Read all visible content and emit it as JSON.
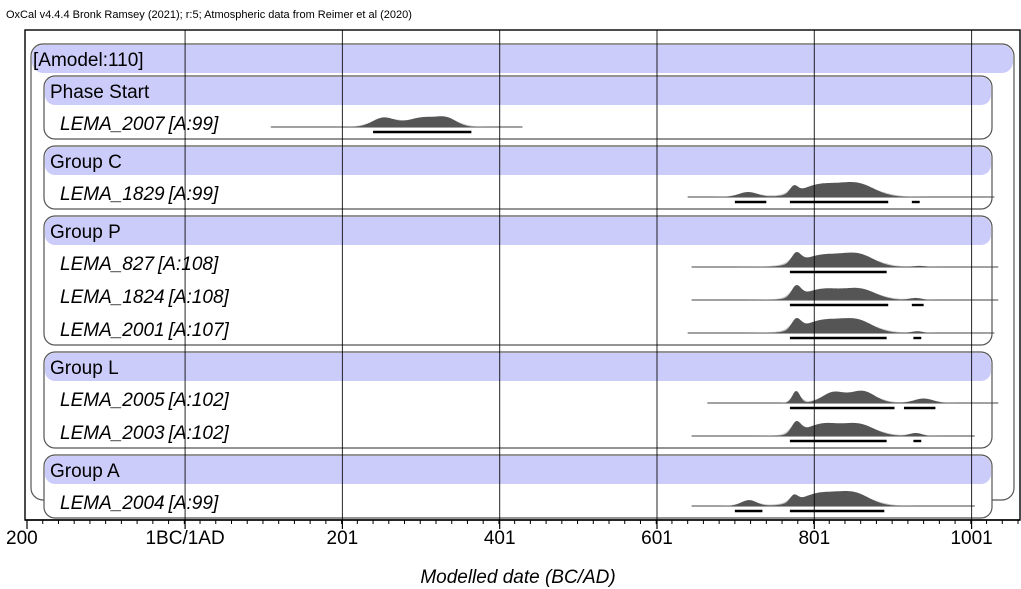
{
  "header": {
    "credit": "OxCal v4.4.4 Bronk Ramsey (2021); r:5; Atmospheric data from Reimer et al (2020)"
  },
  "model": {
    "label": "[Amodel:110]"
  },
  "colors": {
    "band": "#ccccfa",
    "density": "#555555",
    "prior": "#999999",
    "frame": "#555555",
    "grid": "#000000"
  },
  "chart_data": {
    "type": "density",
    "xlabel": "Modelled date (BC/AD)",
    "xlim": [
      -200,
      1060
    ],
    "xticks": [
      {
        "value": -200,
        "label": "200"
      },
      {
        "value": 1,
        "label": "1BC/1AD"
      },
      {
        "value": 201,
        "label": "201"
      },
      {
        "value": 401,
        "label": "401"
      },
      {
        "value": 601,
        "label": "601"
      },
      {
        "value": 801,
        "label": "801"
      },
      {
        "value": 1001,
        "label": "1001"
      }
    ],
    "gridlines": [
      1,
      201,
      401,
      601,
      801,
      1001
    ],
    "groups": [
      {
        "name": "Phase Start",
        "samples": [
          {
            "name": "LEMA_2007",
            "agreement": "[A:99]",
            "line": [
              110,
              430
            ],
            "peaks": [
              {
                "center": 253,
                "width": 14,
                "height": 0.6
              },
              {
                "center": 305,
                "width": 22,
                "height": 0.65
              },
              {
                "center": 335,
                "width": 12,
                "height": 0.4
              }
            ],
            "ranges": [
              [
                240,
                365
              ]
            ]
          }
        ]
      },
      {
        "name": "Group C",
        "samples": [
          {
            "name": "LEMA_1829",
            "agreement": "[A:99]",
            "line": [
              640,
              1030
            ],
            "peaks": [
              {
                "center": 717,
                "width": 12,
                "height": 0.35
              },
              {
                "center": 775,
                "width": 5,
                "height": 0.5
              },
              {
                "center": 808,
                "width": 24,
                "height": 0.85
              },
              {
                "center": 856,
                "width": 22,
                "height": 0.9
              }
            ],
            "ranges": [
              [
                700,
                740
              ],
              [
                770,
                895
              ],
              [
                925,
                935
              ]
            ]
          }
        ]
      },
      {
        "name": "Group P",
        "samples": [
          {
            "name": "LEMA_827",
            "agreement": "[A:108]",
            "line": [
              645,
              1035
            ],
            "peaks": [
              {
                "center": 778,
                "width": 6,
                "height": 0.7
              },
              {
                "center": 812,
                "width": 26,
                "height": 0.85
              },
              {
                "center": 858,
                "width": 20,
                "height": 0.8
              },
              {
                "center": 935,
                "width": 8,
                "height": 0.08
              }
            ],
            "ranges": [
              [
                770,
                893
              ]
            ]
          },
          {
            "name": "LEMA_1824",
            "agreement": "[A:108]",
            "line": [
              645,
              1035
            ],
            "peaks": [
              {
                "center": 778,
                "width": 6,
                "height": 0.8
              },
              {
                "center": 812,
                "width": 24,
                "height": 0.8
              },
              {
                "center": 860,
                "width": 20,
                "height": 0.75
              },
              {
                "center": 930,
                "width": 8,
                "height": 0.15
              }
            ],
            "ranges": [
              [
                770,
                895
              ],
              [
                925,
                940
              ]
            ]
          },
          {
            "name": "LEMA_2001",
            "agreement": "[A:107]",
            "line": [
              640,
              1030
            ],
            "peaks": [
              {
                "center": 778,
                "width": 6,
                "height": 0.7
              },
              {
                "center": 812,
                "width": 24,
                "height": 0.85
              },
              {
                "center": 856,
                "width": 20,
                "height": 0.8
              },
              {
                "center": 932,
                "width": 7,
                "height": 0.12
              }
            ],
            "ranges": [
              [
                770,
                893
              ],
              [
                927,
                937
              ]
            ]
          }
        ]
      },
      {
        "name": "Group L",
        "samples": [
          {
            "name": "LEMA_2005",
            "agreement": "[A:102]",
            "line": [
              665,
              1035
            ],
            "peaks": [
              {
                "center": 778,
                "width": 5,
                "height": 0.8
              },
              {
                "center": 825,
                "width": 14,
                "height": 0.7
              },
              {
                "center": 862,
                "width": 16,
                "height": 0.8
              },
              {
                "center": 940,
                "width": 12,
                "height": 0.3
              }
            ],
            "ranges": [
              [
                770,
                903
              ],
              [
                915,
                955
              ]
            ]
          },
          {
            "name": "LEMA_2003",
            "agreement": "[A:102]",
            "line": [
              645,
              1005
            ],
            "peaks": [
              {
                "center": 778,
                "width": 6,
                "height": 0.75
              },
              {
                "center": 812,
                "width": 22,
                "height": 0.8
              },
              {
                "center": 858,
                "width": 20,
                "height": 0.75
              },
              {
                "center": 930,
                "width": 8,
                "height": 0.2
              }
            ],
            "ranges": [
              [
                770,
                893
              ],
              [
                927,
                937
              ]
            ]
          }
        ]
      },
      {
        "name": "Group A",
        "samples": [
          {
            "name": "LEMA_2004",
            "agreement": "[A:99]",
            "line": [
              645,
              1005
            ],
            "peaks": [
              {
                "center": 718,
                "width": 10,
                "height": 0.4
              },
              {
                "center": 775,
                "width": 5,
                "height": 0.45
              },
              {
                "center": 808,
                "width": 24,
                "height": 0.85
              },
              {
                "center": 852,
                "width": 20,
                "height": 0.8
              }
            ],
            "ranges": [
              [
                700,
                735
              ],
              [
                770,
                890
              ]
            ]
          }
        ]
      }
    ]
  }
}
